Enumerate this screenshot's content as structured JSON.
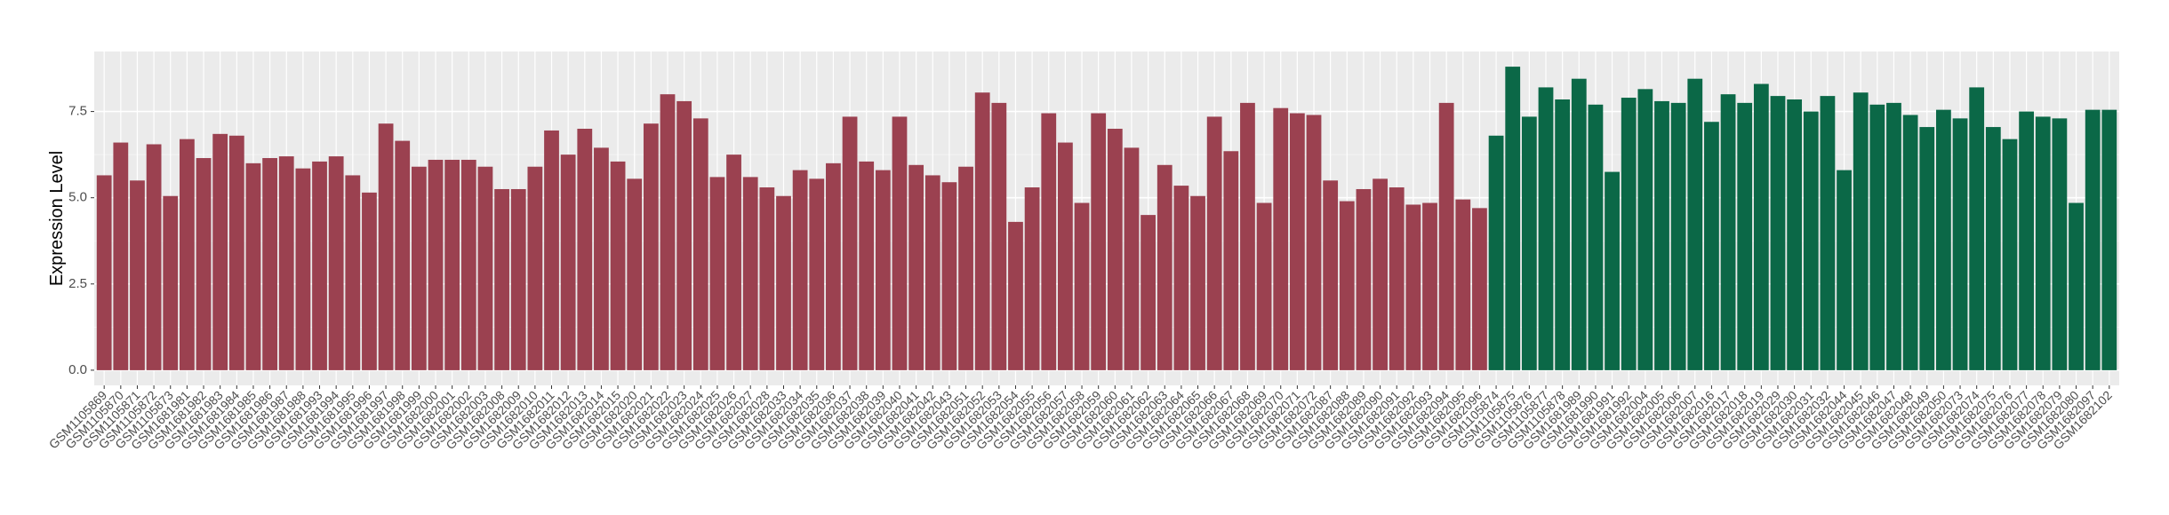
{
  "chart_data": {
    "type": "bar",
    "y_label": "Expression Level",
    "categories": [
      "GSM1105869",
      "GSM1105870",
      "GSM1105871",
      "GSM1105872",
      "GSM1105873",
      "GSM1681981",
      "GSM1681982",
      "GSM1681983",
      "GSM1681984",
      "GSM1681985",
      "GSM1681986",
      "GSM1681987",
      "GSM1681988",
      "GSM1681993",
      "GSM1681994",
      "GSM1681995",
      "GSM1681996",
      "GSM1681997",
      "GSM1681998",
      "GSM1681999",
      "GSM1682000",
      "GSM1682001",
      "GSM1682002",
      "GSM1682003",
      "GSM1682008",
      "GSM1682009",
      "GSM1682010",
      "GSM1682011",
      "GSM1682012",
      "GSM1682013",
      "GSM1682014",
      "GSM1682015",
      "GSM1682020",
      "GSM1682021",
      "GSM1682022",
      "GSM1682023",
      "GSM1682024",
      "GSM1682025",
      "GSM1682026",
      "GSM1682027",
      "GSM1682028",
      "GSM1682033",
      "GSM1682034",
      "GSM1682035",
      "GSM1682036",
      "GSM1682037",
      "GSM1682038",
      "GSM1682039",
      "GSM1682040",
      "GSM1682041",
      "GSM1682042",
      "GSM1682043",
      "GSM1682051",
      "GSM1682052",
      "GSM1682053",
      "GSM1682054",
      "GSM1682055",
      "GSM1682056",
      "GSM1682057",
      "GSM1682058",
      "GSM1682059",
      "GSM1682060",
      "GSM1682061",
      "GSM1682062",
      "GSM1682063",
      "GSM1682064",
      "GSM1682065",
      "GSM1682066",
      "GSM1682067",
      "GSM1682068",
      "GSM1682069",
      "GSM1682070",
      "GSM1682071",
      "GSM1682072",
      "GSM1682087",
      "GSM1682088",
      "GSM1682089",
      "GSM1682090",
      "GSM1682091",
      "GSM1682092",
      "GSM1682093",
      "GSM1682094",
      "GSM1682095",
      "GSM1682096",
      "GSM1105874",
      "GSM1105875",
      "GSM1105876",
      "GSM1105877",
      "GSM1105878",
      "GSM1681989",
      "GSM1681990",
      "GSM1681991",
      "GSM1681992",
      "GSM1682004",
      "GSM1682005",
      "GSM1682006",
      "GSM1682007",
      "GSM1682016",
      "GSM1682017",
      "GSM1682018",
      "GSM1682019",
      "GSM1682029",
      "GSM1682030",
      "GSM1682031",
      "GSM1682032",
      "GSM1682044",
      "GSM1682045",
      "GSM1682046",
      "GSM1682047",
      "GSM1682048",
      "GSM1682049",
      "GSM1682050",
      "GSM1682073",
      "GSM1682074",
      "GSM1682075",
      "GSM1682076",
      "GSM1682077",
      "GSM1682078",
      "GSM1682079",
      "GSM1682080",
      "GSM1682097",
      "GSM1682102"
    ],
    "values": [
      5.65,
      6.6,
      5.5,
      6.55,
      5.05,
      6.7,
      6.15,
      6.85,
      6.8,
      6.0,
      6.15,
      6.2,
      5.85,
      6.05,
      6.2,
      5.65,
      5.15,
      7.15,
      6.65,
      5.9,
      6.1,
      6.1,
      6.1,
      5.9,
      5.25,
      5.25,
      5.9,
      6.95,
      6.25,
      7.0,
      6.45,
      6.05,
      5.55,
      7.15,
      8.0,
      7.8,
      7.3,
      5.6,
      6.25,
      5.6,
      5.3,
      5.05,
      5.8,
      5.55,
      6.0,
      7.35,
      6.05,
      5.8,
      7.35,
      5.95,
      5.65,
      5.45,
      5.9,
      8.05,
      7.75,
      4.3,
      5.3,
      7.45,
      6.6,
      4.85,
      7.45,
      7.0,
      6.45,
      4.5,
      5.95,
      5.35,
      5.05,
      7.35,
      6.35,
      7.75,
      4.85,
      7.6,
      7.45,
      7.4,
      5.5,
      4.9,
      5.25,
      5.55,
      5.3,
      4.8,
      4.85,
      7.75,
      4.95,
      4.7,
      6.8,
      8.8,
      7.35,
      8.2,
      7.85,
      8.45,
      7.7,
      5.75,
      7.9,
      8.15,
      7.8,
      7.75,
      8.45,
      7.2,
      8.0,
      7.75,
      8.3,
      7.95,
      7.85,
      7.5,
      7.95,
      5.8,
      8.05,
      7.7,
      7.75,
      7.4,
      7.05,
      7.55,
      7.3,
      8.2,
      7.05,
      6.7,
      7.5,
      7.35,
      7.3,
      4.85,
      7.55,
      7.55
    ],
    "colors": [
      "#9b4150",
      "#9b4150",
      "#9b4150",
      "#9b4150",
      "#9b4150",
      "#9b4150",
      "#9b4150",
      "#9b4150",
      "#9b4150",
      "#9b4150",
      "#9b4150",
      "#9b4150",
      "#9b4150",
      "#9b4150",
      "#9b4150",
      "#9b4150",
      "#9b4150",
      "#9b4150",
      "#9b4150",
      "#9b4150",
      "#9b4150",
      "#9b4150",
      "#9b4150",
      "#9b4150",
      "#9b4150",
      "#9b4150",
      "#9b4150",
      "#9b4150",
      "#9b4150",
      "#9b4150",
      "#9b4150",
      "#9b4150",
      "#9b4150",
      "#9b4150",
      "#9b4150",
      "#9b4150",
      "#9b4150",
      "#9b4150",
      "#9b4150",
      "#9b4150",
      "#9b4150",
      "#9b4150",
      "#9b4150",
      "#9b4150",
      "#9b4150",
      "#9b4150",
      "#9b4150",
      "#9b4150",
      "#9b4150",
      "#9b4150",
      "#9b4150",
      "#9b4150",
      "#9b4150",
      "#9b4150",
      "#9b4150",
      "#9b4150",
      "#9b4150",
      "#9b4150",
      "#9b4150",
      "#9b4150",
      "#9b4150",
      "#9b4150",
      "#9b4150",
      "#9b4150",
      "#9b4150",
      "#9b4150",
      "#9b4150",
      "#9b4150",
      "#9b4150",
      "#9b4150",
      "#9b4150",
      "#9b4150",
      "#9b4150",
      "#9b4150",
      "#9b4150",
      "#9b4150",
      "#9b4150",
      "#9b4150",
      "#9b4150",
      "#9b4150",
      "#9b4150",
      "#9b4150",
      "#9b4150",
      "#9b4150",
      "#0b6847",
      "#0b6847",
      "#0b6847",
      "#0b6847",
      "#0b6847",
      "#0b6847",
      "#0b6847",
      "#0b6847",
      "#0b6847",
      "#0b6847",
      "#0b6847",
      "#0b6847",
      "#0b6847",
      "#0b6847",
      "#0b6847",
      "#0b6847",
      "#0b6847",
      "#0b6847",
      "#0b6847",
      "#0b6847",
      "#0b6847",
      "#0b6847",
      "#0b6847",
      "#0b6847",
      "#0b6847",
      "#0b6847",
      "#0b6847",
      "#0b6847",
      "#0b6847",
      "#0b6847",
      "#0b6847",
      "#0b6847",
      "#0b6847",
      "#0b6847",
      "#0b6847",
      "#0b6847",
      "#0b6847",
      "#0b6847"
    ],
    "ylim": [
      -0.44,
      9.24
    ],
    "yticks": [
      {
        "value": 0,
        "label": "0.0"
      },
      {
        "value": 2.5,
        "label": "2.5"
      },
      {
        "value": 5,
        "label": "5.0"
      },
      {
        "value": 7.5,
        "label": "7.5"
      }
    ],
    "grid": true
  }
}
